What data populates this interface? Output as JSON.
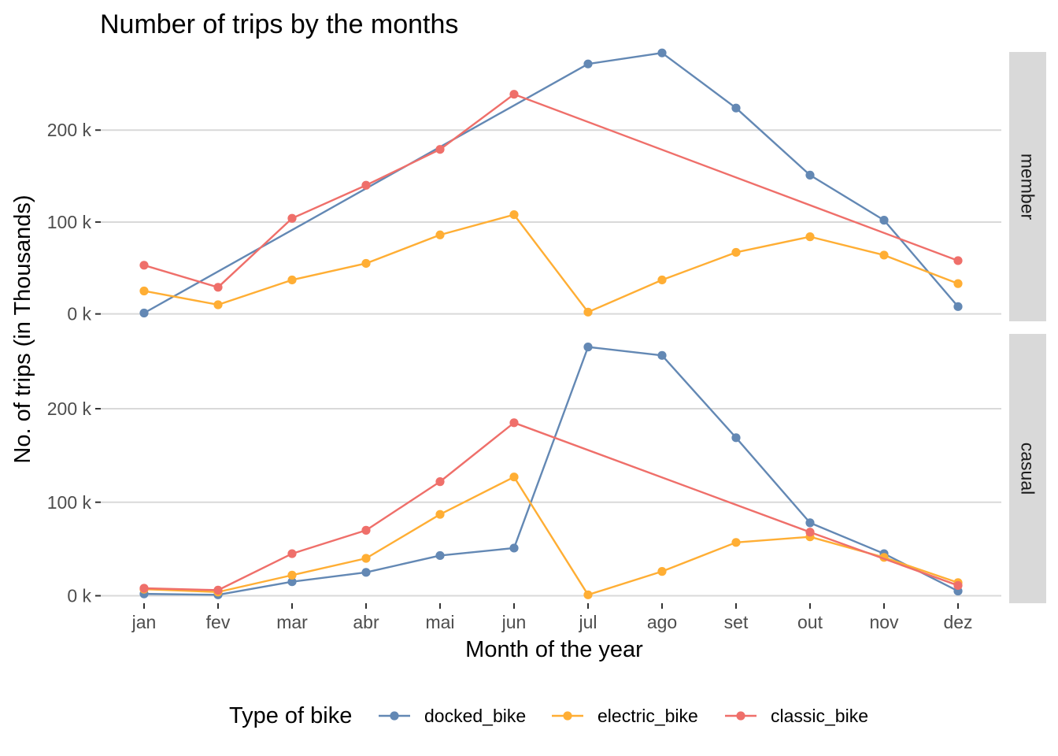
{
  "chart_data": {
    "type": "line",
    "title": "Number of trips by the months",
    "xlabel": "Month of the year",
    "ylabel": "No. of trips (in Thousands)",
    "categories": [
      "jan",
      "fev",
      "mar",
      "abr",
      "mai",
      "jun",
      "jul",
      "ago",
      "set",
      "out",
      "nov",
      "dez"
    ],
    "y_ticks": [
      0,
      100,
      200
    ],
    "y_tick_labels": [
      "0 k",
      "100 k",
      "200 k"
    ],
    "grid": "horizontal major",
    "legend": {
      "title": "Type of bike",
      "position": "bottom",
      "entries": [
        {
          "name": "docked_bike",
          "color": "#6388b4"
        },
        {
          "name": "electric_bike",
          "color": "#ffae34"
        },
        {
          "name": "classic_bike",
          "color": "#ef6f6a"
        }
      ]
    },
    "panels": [
      {
        "strip": "member",
        "ylim": [
          -8,
          285
        ],
        "series": [
          {
            "name": "docked_bike",
            "color": "#6388b4",
            "points": [
              [
                0,
                1
              ],
              [
                6,
                272
              ],
              [
                7,
                284
              ],
              [
                8,
                224
              ],
              [
                9,
                151
              ],
              [
                10,
                102
              ],
              [
                11,
                8
              ]
            ]
          },
          {
            "name": "electric_bike",
            "color": "#ffae34",
            "points": [
              [
                0,
                25
              ],
              [
                1,
                10
              ],
              [
                2,
                37
              ],
              [
                3,
                55
              ],
              [
                4,
                86
              ],
              [
                5,
                108
              ],
              [
                6,
                2
              ],
              [
                7,
                37
              ],
              [
                8,
                67
              ],
              [
                9,
                84
              ],
              [
                10,
                64
              ],
              [
                11,
                33
              ]
            ]
          },
          {
            "name": "classic_bike",
            "color": "#ef6f6a",
            "points": [
              [
                0,
                53
              ],
              [
                1,
                29
              ],
              [
                2,
                104
              ],
              [
                3,
                140
              ],
              [
                4,
                179
              ],
              [
                5,
                239
              ],
              [
                11,
                58
              ]
            ]
          }
        ]
      },
      {
        "strip": "casual",
        "ylim": [
          -8,
          280
        ],
        "series": [
          {
            "name": "docked_bike",
            "color": "#6388b4",
            "points": [
              [
                0,
                2
              ],
              [
                1,
                1
              ],
              [
                2,
                15
              ],
              [
                3,
                25
              ],
              [
                4,
                43
              ],
              [
                5,
                51
              ],
              [
                6,
                266
              ],
              [
                7,
                257
              ],
              [
                8,
                169
              ],
              [
                9,
                78
              ],
              [
                10,
                45
              ],
              [
                11,
                5
              ]
            ]
          },
          {
            "name": "electric_bike",
            "color": "#ffae34",
            "points": [
              [
                0,
                7
              ],
              [
                1,
                4
              ],
              [
                2,
                22
              ],
              [
                3,
                40
              ],
              [
                4,
                87
              ],
              [
                5,
                127
              ],
              [
                6,
                1
              ],
              [
                7,
                26
              ],
              [
                8,
                57
              ],
              [
                9,
                63
              ],
              [
                10,
                41
              ],
              [
                11,
                14
              ]
            ]
          },
          {
            "name": "classic_bike",
            "color": "#ef6f6a",
            "points": [
              [
                0,
                8
              ],
              [
                1,
                6
              ],
              [
                2,
                45
              ],
              [
                3,
                70
              ],
              [
                4,
                122
              ],
              [
                5,
                185
              ],
              [
                9,
                68
              ],
              [
                11,
                11
              ]
            ]
          }
        ]
      }
    ]
  }
}
